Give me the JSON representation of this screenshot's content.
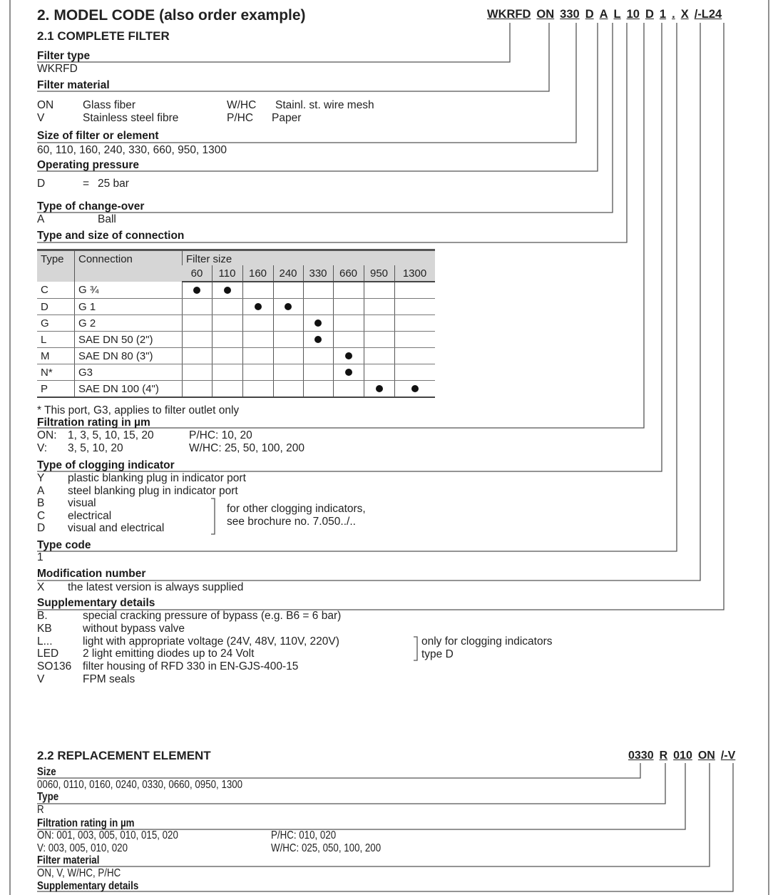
{
  "title": "2. MODEL CODE (also order example)",
  "complete": {
    "heading": "2.1 COMPLETE FILTER",
    "code": [
      "WKRFD",
      "ON",
      "330",
      "D",
      "A",
      "L",
      "10",
      "D",
      "1",
      ".",
      "X",
      "/-L24"
    ],
    "filter_type": {
      "label": "Filter type",
      "value": "WKRFD"
    },
    "filter_material": {
      "label": "Filter material",
      "rows": [
        [
          "ON",
          "Glass fiber",
          "W/HC",
          "Stainl. st. wire mesh"
        ],
        [
          "V",
          "Stainless steel fibre",
          "P/HC",
          "Paper"
        ]
      ]
    },
    "size": {
      "label": "Size of filter or element",
      "value": "60, 110, 160, 240, 330, 660, 950, 1300"
    },
    "pressure": {
      "label": "Operating pressure",
      "code": "D",
      "eq": "=",
      "value": "25 bar"
    },
    "changeover": {
      "label": "Type of change-over",
      "code": "A",
      "value": "Ball"
    },
    "connection": {
      "label": "Type and size of connection",
      "headers": {
        "type": "Type",
        "connection": "Connection",
        "filter_size": "Filter size",
        "sizes": [
          "60",
          "110",
          "160",
          "240",
          "330",
          "660",
          "950",
          "1300"
        ]
      },
      "rows": [
        {
          "type": "C",
          "connection": "G ¾",
          "avail": [
            1,
            1,
            0,
            0,
            0,
            0,
            0,
            0
          ]
        },
        {
          "type": "D",
          "connection": "G 1",
          "avail": [
            0,
            0,
            1,
            1,
            0,
            0,
            0,
            0
          ]
        },
        {
          "type": "G",
          "connection": "G 2",
          "avail": [
            0,
            0,
            0,
            0,
            1,
            0,
            0,
            0
          ]
        },
        {
          "type": "L",
          "connection": "SAE DN   50 (2\")",
          "avail": [
            0,
            0,
            0,
            0,
            1,
            0,
            0,
            0
          ]
        },
        {
          "type": "M",
          "connection": "SAE DN   80 (3\")",
          "avail": [
            0,
            0,
            0,
            0,
            0,
            1,
            0,
            0
          ]
        },
        {
          "type": "N*",
          "connection": "G3",
          "avail": [
            0,
            0,
            0,
            0,
            0,
            1,
            0,
            0
          ]
        },
        {
          "type": "P",
          "connection": "SAE DN 100 (4\")",
          "avail": [
            0,
            0,
            0,
            0,
            0,
            0,
            1,
            1
          ]
        }
      ],
      "footnote": "* This port, G3, applies to filter outlet only"
    },
    "filtration": {
      "label": "Filtration rating in µm",
      "rows": [
        [
          "ON:",
          "1, 3, 5, 10, 15, 20",
          "P/HC:  10, 20"
        ],
        [
          "V:",
          "3, 5, 10, 20",
          "W/HC: 25, 50, 100, 200"
        ]
      ]
    },
    "clogging": {
      "label": "Type of clogging indicator",
      "rows": [
        [
          "Y",
          "plastic blanking plug in indicator port"
        ],
        [
          "A",
          "steel blanking plug in indicator port"
        ],
        [
          "B",
          "visual"
        ],
        [
          "C",
          "electrical"
        ],
        [
          "D",
          "visual and electrical"
        ]
      ],
      "note": [
        "for other clogging indicators,",
        "see brochure no. 7.050../.."
      ]
    },
    "type_code": {
      "label": "Type code",
      "value": "1"
    },
    "modification": {
      "label": "Modification number",
      "code": "X",
      "value": "the latest version is always supplied"
    },
    "supplementary": {
      "label": "Supplementary details",
      "rows": [
        [
          "B.",
          "special cracking pressure of bypass (e.g. B6 = 6 bar)"
        ],
        [
          "KB",
          "without bypass valve"
        ],
        [
          "L...",
          "light with appropriate voltage (24V, 48V, 110V, 220V)"
        ],
        [
          "LED",
          "2 light emitting diodes up to 24 Volt"
        ],
        [
          "SO136",
          "filter housing of RFD 330 in EN-GJS-400-15"
        ],
        [
          "V",
          "FPM seals"
        ]
      ],
      "note": [
        "only for clogging indicators",
        "type D"
      ]
    }
  },
  "replacement": {
    "heading": "2.2 REPLACEMENT ELEMENT",
    "code": [
      "0330",
      "R",
      "010",
      "ON",
      "/-V"
    ],
    "size": {
      "label": "Size",
      "value": "0060, 0110, 0160, 0240, 0330, 0660, 0950, 1300"
    },
    "type": {
      "label": "Type",
      "value": "R"
    },
    "filtration": {
      "label": "Filtration rating in µm",
      "rows": [
        [
          "ON:  001, 003, 005, 010, 015, 020",
          "P/HC:   010, 020"
        ],
        [
          "V:     003, 005, 010, 020",
          "W/HC:  025, 050, 100, 200"
        ]
      ]
    },
    "material": {
      "label": "Filter material",
      "value": "ON, V, W/HC, P/HC"
    },
    "supplementary": {
      "label": "Supplementary details"
    }
  }
}
